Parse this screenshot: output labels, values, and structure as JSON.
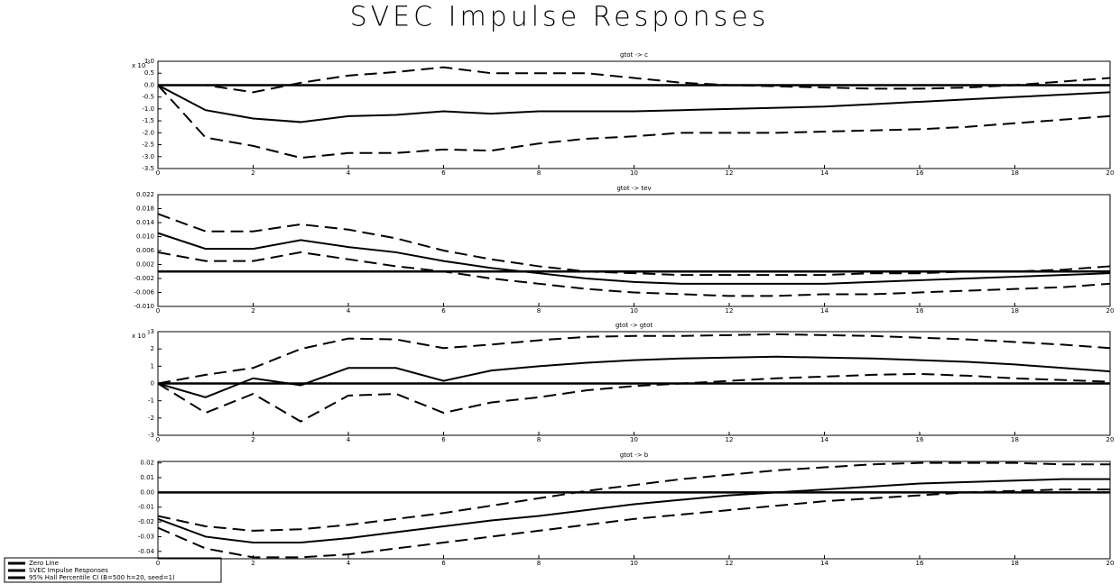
{
  "title": "SVEC Impulse Responses",
  "legend": [
    "Zero Line",
    "SVEC Impulse Responses",
    "95% Hall Percentile CI (B=500 h=20, seed=1)"
  ],
  "chart_data": [
    {
      "type": "line",
      "title": "gtot -> c",
      "y_scale": {
        "base": "x 10",
        "exponent": "3"
      },
      "x": [
        0,
        1,
        2,
        3,
        4,
        5,
        6,
        7,
        8,
        9,
        10,
        11,
        12,
        13,
        14,
        15,
        16,
        17,
        18,
        19,
        20
      ],
      "xlim": [
        0,
        20
      ],
      "xticks": [
        0,
        2,
        4,
        6,
        8,
        10,
        12,
        14,
        16,
        18,
        20
      ],
      "ylim": [
        -3.5,
        1.0
      ],
      "yticks": [
        {
          "value": 1,
          "label": "1.0"
        },
        0.5,
        {
          "value": 0,
          "label": "0.0"
        },
        -0.5,
        {
          "value": -1,
          "label": "-1.0"
        },
        -1.5,
        {
          "value": -2,
          "label": "-2.0"
        },
        -2.5,
        {
          "value": -3,
          "label": "-3.0"
        },
        -3.5
      ],
      "zero_line": true,
      "series": [
        {
          "style": "solid",
          "values": [
            0,
            -1.05,
            -1.4,
            -1.55,
            -1.3,
            -1.25,
            -1.1,
            -1.2,
            -1.1,
            -1.1,
            -1.1,
            -1.05,
            -1.0,
            -0.95,
            -0.9,
            -0.8,
            -0.7,
            -0.6,
            -0.5,
            -0.4,
            -0.3
          ]
        },
        {
          "style": "dashed",
          "values": [
            0,
            0.0,
            -0.3,
            0.1,
            0.4,
            0.55,
            0.75,
            0.5,
            0.5,
            0.5,
            0.3,
            0.1,
            0.0,
            -0.05,
            -0.1,
            -0.15,
            -0.15,
            -0.1,
            0.0,
            0.15,
            0.3
          ]
        },
        {
          "style": "dashed",
          "values": [
            0,
            -2.2,
            -2.55,
            -3.05,
            -2.85,
            -2.85,
            -2.7,
            -2.75,
            -2.45,
            -2.25,
            -2.15,
            -2.0,
            -2.0,
            -2.0,
            -1.95,
            -1.9,
            -1.85,
            -1.75,
            -1.6,
            -1.45,
            -1.3
          ]
        }
      ]
    },
    {
      "type": "line",
      "title": "gtot -> tev",
      "x": [
        0,
        1,
        2,
        3,
        4,
        5,
        6,
        7,
        8,
        9,
        10,
        11,
        12,
        13,
        14,
        15,
        16,
        17,
        18,
        19,
        20
      ],
      "xlim": [
        0,
        20
      ],
      "xticks": [
        0,
        2,
        4,
        6,
        8,
        10,
        12,
        14,
        16,
        18,
        20
      ],
      "ylim": [
        -0.01,
        0.022
      ],
      "yticks": [
        0.022,
        0.018,
        0.014,
        {
          "value": 0.01,
          "label": "0.010"
        },
        0.006,
        0.002,
        -0.002,
        -0.006,
        {
          "value": -0.01,
          "label": "-0.010"
        }
      ],
      "zero_line": true,
      "series": [
        {
          "style": "solid",
          "values": [
            0.011,
            0.0065,
            0.0065,
            0.009,
            0.007,
            0.0055,
            0.003,
            0.001,
            -0.0005,
            -0.002,
            -0.003,
            -0.0035,
            -0.0035,
            -0.0035,
            -0.0035,
            -0.003,
            -0.0025,
            -0.002,
            -0.0015,
            -0.001,
            -0.0005
          ]
        },
        {
          "style": "dashed",
          "values": [
            0.0165,
            0.0115,
            0.0115,
            0.0135,
            0.012,
            0.0095,
            0.006,
            0.0035,
            0.0015,
            0.0,
            -0.0005,
            -0.001,
            -0.001,
            -0.001,
            -0.001,
            -0.0005,
            -0.0005,
            0.0,
            0.0,
            0.0005,
            0.0015
          ]
        },
        {
          "style": "dashed",
          "values": [
            0.0055,
            0.003,
            0.003,
            0.0055,
            0.0035,
            0.0015,
            0.0,
            -0.002,
            -0.0035,
            -0.005,
            -0.006,
            -0.0065,
            -0.007,
            -0.007,
            -0.0065,
            -0.0065,
            -0.006,
            -0.0055,
            -0.005,
            -0.0045,
            -0.0035
          ]
        }
      ]
    },
    {
      "type": "line",
      "title": "gtot -> gtot",
      "y_scale": {
        "base": "x 10",
        "exponent": "3"
      },
      "x": [
        0,
        1,
        2,
        3,
        4,
        5,
        6,
        7,
        8,
        9,
        10,
        11,
        12,
        13,
        14,
        15,
        16,
        17,
        18,
        19,
        20
      ],
      "xlim": [
        0,
        20
      ],
      "xticks": [
        0,
        2,
        4,
        6,
        8,
        10,
        12,
        14,
        16,
        18,
        20
      ],
      "ylim": [
        -3,
        3
      ],
      "yticks": [
        3,
        2,
        1,
        0,
        -1,
        -2,
        -3
      ],
      "zero_line": true,
      "series": [
        {
          "style": "solid",
          "values": [
            0,
            -0.8,
            0.3,
            -0.1,
            0.9,
            0.9,
            0.15,
            0.75,
            1.0,
            1.2,
            1.35,
            1.45,
            1.5,
            1.55,
            1.5,
            1.45,
            1.35,
            1.25,
            1.1,
            0.9,
            0.7
          ]
        },
        {
          "style": "dashed",
          "values": [
            0,
            0.5,
            0.9,
            2.0,
            2.6,
            2.55,
            2.05,
            2.25,
            2.5,
            2.7,
            2.75,
            2.75,
            2.8,
            2.85,
            2.8,
            2.75,
            2.65,
            2.55,
            2.4,
            2.25,
            2.05
          ]
        },
        {
          "style": "dashed",
          "values": [
            0,
            -1.7,
            -0.6,
            -2.2,
            -0.7,
            -0.6,
            -1.7,
            -1.1,
            -0.8,
            -0.4,
            -0.15,
            0.0,
            0.15,
            0.3,
            0.4,
            0.5,
            0.55,
            0.45,
            0.3,
            0.2,
            0.1
          ]
        }
      ]
    },
    {
      "type": "line",
      "title": "gtot -> b",
      "x": [
        0,
        1,
        2,
        3,
        4,
        5,
        6,
        7,
        8,
        9,
        10,
        11,
        12,
        13,
        14,
        15,
        16,
        17,
        18,
        19,
        20
      ],
      "xlim": [
        0,
        20
      ],
      "xticks": [
        0,
        2,
        4,
        6,
        8,
        10,
        12,
        14,
        16,
        18,
        20
      ],
      "ylim": [
        -0.045,
        0.021
      ],
      "yticks": [
        0.02,
        0.01,
        {
          "value": 0,
          "label": "0.00"
        },
        -0.01,
        -0.02,
        -0.03,
        -0.04
      ],
      "zero_line": true,
      "series": [
        {
          "style": "solid",
          "values": [
            -0.018,
            -0.03,
            -0.034,
            -0.034,
            -0.031,
            -0.027,
            -0.023,
            -0.019,
            -0.016,
            -0.012,
            -0.008,
            -0.005,
            -0.002,
            0.0,
            0.002,
            0.004,
            0.006,
            0.007,
            0.008,
            0.009,
            0.009
          ]
        },
        {
          "style": "dashed",
          "values": [
            -0.016,
            -0.023,
            -0.026,
            -0.025,
            -0.022,
            -0.018,
            -0.014,
            -0.009,
            -0.004,
            0.001,
            0.005,
            0.009,
            0.012,
            0.015,
            0.017,
            0.019,
            0.02,
            0.02,
            0.02,
            0.019,
            0.019
          ]
        },
        {
          "style": "dashed",
          "values": [
            -0.024,
            -0.038,
            -0.044,
            -0.044,
            -0.042,
            -0.038,
            -0.034,
            -0.03,
            -0.026,
            -0.022,
            -0.018,
            -0.015,
            -0.012,
            -0.009,
            -0.006,
            -0.004,
            -0.002,
            0.0,
            0.001,
            0.002,
            0.002
          ]
        }
      ]
    }
  ]
}
